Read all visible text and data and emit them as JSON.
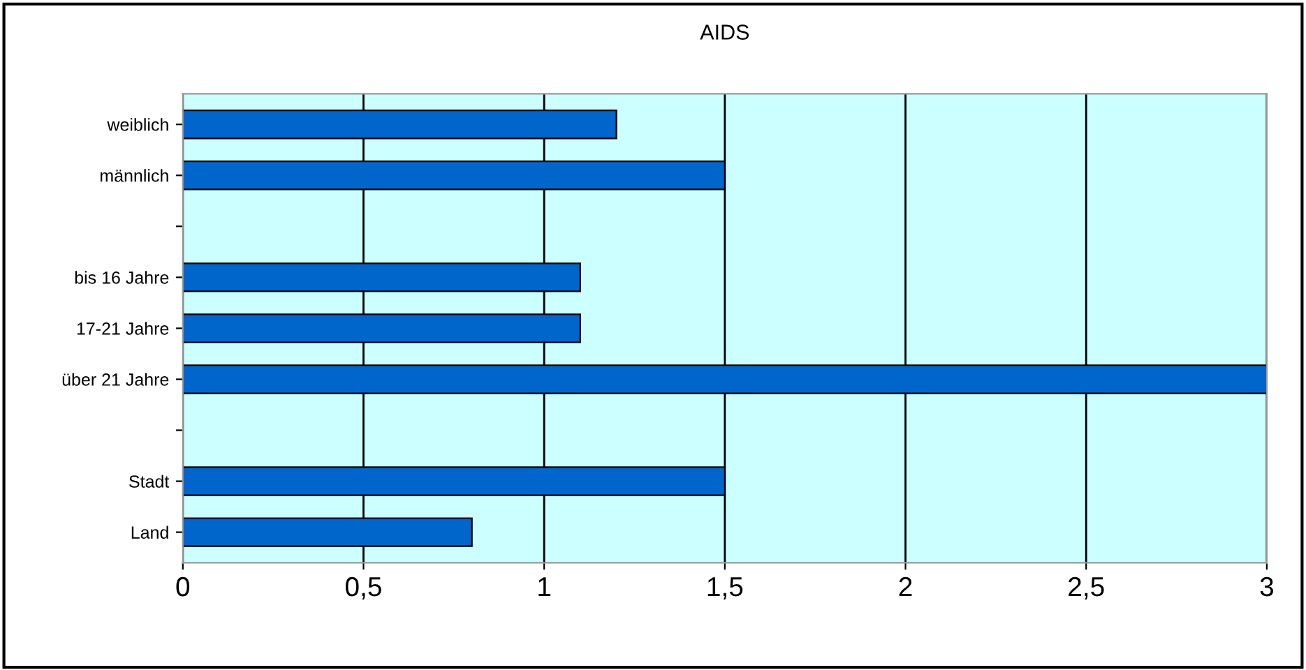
{
  "chart_data": {
    "type": "bar",
    "orientation": "horizontal",
    "title": "AIDS",
    "categories": [
      "weiblich",
      "männlich",
      null,
      "bis 16 Jahre",
      "17-21 Jahre",
      "über 21 Jahre",
      null,
      "Stadt",
      "Land"
    ],
    "values": [
      1.2,
      1.5,
      null,
      1.1,
      1.1,
      3.0,
      null,
      1.5,
      0.8
    ],
    "color": "#0066cc",
    "xlim": [
      0,
      3
    ],
    "xticks": [
      0,
      {
        "value": 0.5,
        "label": "0,5"
      },
      1,
      {
        "value": 1.5,
        "label": "1,5"
      },
      2,
      {
        "value": 2.5,
        "label": "2,5"
      },
      3
    ],
    "grid": "x"
  }
}
